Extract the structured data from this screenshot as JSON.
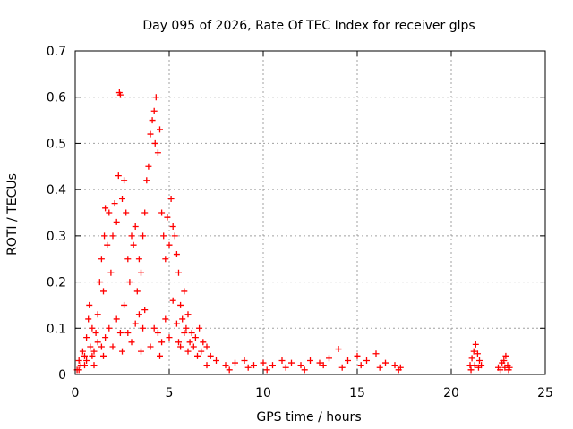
{
  "chart_data": {
    "type": "scatter",
    "title": "Day 095 of 2026, Rate Of TEC Index for receiver glps",
    "xlabel": "GPS time / hours",
    "ylabel": "ROTI / TECUs",
    "xlim": [
      0,
      25
    ],
    "ylim": [
      0,
      0.7
    ],
    "xticks": [
      "0",
      "5",
      "10",
      "15",
      "20",
      "25"
    ],
    "yticks": [
      "0",
      "0.1",
      "0.2",
      "0.3",
      "0.4",
      "0.5",
      "0.6",
      "0.7"
    ],
    "grid": true,
    "marker": "+",
    "color": "#ff0000",
    "series": [
      {
        "name": "ROTI",
        "points": [
          [
            0.1,
            0.01
          ],
          [
            0.2,
            0.03
          ],
          [
            0.3,
            0.02
          ],
          [
            0.4,
            0.05
          ],
          [
            0.5,
            0.04
          ],
          [
            0.6,
            0.08
          ],
          [
            0.7,
            0.12
          ],
          [
            0.75,
            0.15
          ],
          [
            0.8,
            0.06
          ],
          [
            0.9,
            0.1
          ],
          [
            1.0,
            0.05
          ],
          [
            1.1,
            0.09
          ],
          [
            1.2,
            0.13
          ],
          [
            1.3,
            0.2
          ],
          [
            1.4,
            0.25
          ],
          [
            1.5,
            0.18
          ],
          [
            1.55,
            0.3
          ],
          [
            1.6,
            0.36
          ],
          [
            1.7,
            0.28
          ],
          [
            1.8,
            0.35
          ],
          [
            1.9,
            0.22
          ],
          [
            2.0,
            0.3
          ],
          [
            2.1,
            0.37
          ],
          [
            2.2,
            0.33
          ],
          [
            2.3,
            0.43
          ],
          [
            2.35,
            0.61
          ],
          [
            2.4,
            0.605
          ],
          [
            2.5,
            0.38
          ],
          [
            2.6,
            0.42
          ],
          [
            2.7,
            0.35
          ],
          [
            2.8,
            0.25
          ],
          [
            2.9,
            0.2
          ],
          [
            3.0,
            0.3
          ],
          [
            3.1,
            0.28
          ],
          [
            3.2,
            0.32
          ],
          [
            3.3,
            0.18
          ],
          [
            3.4,
            0.25
          ],
          [
            3.5,
            0.22
          ],
          [
            3.6,
            0.3
          ],
          [
            3.7,
            0.35
          ],
          [
            3.8,
            0.42
          ],
          [
            3.9,
            0.45
          ],
          [
            4.0,
            0.52
          ],
          [
            4.1,
            0.55
          ],
          [
            4.2,
            0.57
          ],
          [
            4.25,
            0.5
          ],
          [
            4.3,
            0.6
          ],
          [
            4.4,
            0.48
          ],
          [
            4.5,
            0.53
          ],
          [
            4.6,
            0.35
          ],
          [
            4.7,
            0.3
          ],
          [
            4.8,
            0.25
          ],
          [
            4.9,
            0.34
          ],
          [
            5.0,
            0.28
          ],
          [
            5.1,
            0.38
          ],
          [
            5.2,
            0.32
          ],
          [
            5.3,
            0.3
          ],
          [
            5.4,
            0.26
          ],
          [
            5.5,
            0.22
          ],
          [
            5.6,
            0.15
          ],
          [
            5.7,
            0.12
          ],
          [
            5.8,
            0.18
          ],
          [
            5.9,
            0.1
          ],
          [
            6.0,
            0.13
          ],
          [
            6.2,
            0.09
          ],
          [
            6.4,
            0.08
          ],
          [
            6.6,
            0.1
          ],
          [
            6.8,
            0.07
          ],
          [
            7.0,
            0.06
          ],
          [
            7.2,
            0.04
          ],
          [
            7.5,
            0.03
          ],
          [
            8.0,
            0.02
          ],
          [
            8.5,
            0.025
          ],
          [
            9.0,
            0.03
          ],
          [
            9.5,
            0.02
          ],
          [
            10.0,
            0.025
          ],
          [
            10.5,
            0.02
          ],
          [
            11.0,
            0.03
          ],
          [
            11.5,
            0.025
          ],
          [
            12.0,
            0.02
          ],
          [
            12.5,
            0.03
          ],
          [
            13.0,
            0.025
          ],
          [
            13.5,
            0.035
          ],
          [
            14.0,
            0.055
          ],
          [
            14.5,
            0.03
          ],
          [
            15.0,
            0.04
          ],
          [
            15.5,
            0.03
          ],
          [
            16.0,
            0.045
          ],
          [
            16.5,
            0.025
          ],
          [
            17.0,
            0.02
          ],
          [
            17.3,
            0.015
          ],
          [
            21.0,
            0.02
          ],
          [
            21.1,
            0.035
          ],
          [
            21.2,
            0.05
          ],
          [
            21.3,
            0.065
          ],
          [
            21.4,
            0.045
          ],
          [
            21.5,
            0.03
          ],
          [
            21.6,
            0.02
          ],
          [
            22.5,
            0.015
          ],
          [
            22.7,
            0.025
          ],
          [
            22.8,
            0.03
          ],
          [
            22.9,
            0.04
          ],
          [
            23.0,
            0.02
          ],
          [
            23.1,
            0.015
          ],
          [
            0.2,
            0.01
          ],
          [
            0.5,
            0.02
          ],
          [
            1.0,
            0.02
          ],
          [
            1.5,
            0.04
          ],
          [
            2.0,
            0.06
          ],
          [
            2.5,
            0.05
          ],
          [
            3.0,
            0.07
          ],
          [
            3.5,
            0.05
          ],
          [
            4.0,
            0.06
          ],
          [
            4.5,
            0.04
          ],
          [
            5.0,
            0.08
          ],
          [
            5.5,
            0.07
          ],
          [
            6.0,
            0.05
          ],
          [
            6.5,
            0.04
          ],
          [
            7.0,
            0.02
          ],
          [
            1.2,
            0.07
          ],
          [
            1.8,
            0.1
          ],
          [
            2.2,
            0.12
          ],
          [
            2.8,
            0.09
          ],
          [
            3.2,
            0.11
          ],
          [
            3.7,
            0.14
          ],
          [
            4.2,
            0.1
          ],
          [
            4.8,
            0.12
          ],
          [
            5.2,
            0.16
          ],
          [
            5.8,
            0.09
          ],
          [
            6.3,
            0.06
          ],
          [
            0.9,
            0.04
          ],
          [
            1.6,
            0.08
          ],
          [
            2.6,
            0.15
          ],
          [
            3.4,
            0.13
          ],
          [
            4.4,
            0.09
          ],
          [
            5.4,
            0.11
          ],
          [
            6.1,
            0.07
          ],
          [
            0.6,
            0.03
          ],
          [
            1.4,
            0.06
          ],
          [
            2.4,
            0.09
          ],
          [
            3.6,
            0.1
          ],
          [
            4.6,
            0.07
          ],
          [
            5.6,
            0.06
          ],
          [
            6.7,
            0.05
          ],
          [
            8.2,
            0.01
          ],
          [
            9.2,
            0.015
          ],
          [
            10.2,
            0.01
          ],
          [
            11.2,
            0.015
          ],
          [
            12.2,
            0.01
          ],
          [
            13.2,
            0.02
          ],
          [
            14.2,
            0.015
          ],
          [
            15.2,
            0.02
          ],
          [
            16.2,
            0.015
          ],
          [
            17.2,
            0.01
          ],
          [
            21.05,
            0.01
          ],
          [
            21.25,
            0.02
          ],
          [
            21.45,
            0.015
          ],
          [
            22.6,
            0.01
          ],
          [
            22.85,
            0.015
          ],
          [
            23.05,
            0.01
          ]
        ]
      }
    ]
  }
}
